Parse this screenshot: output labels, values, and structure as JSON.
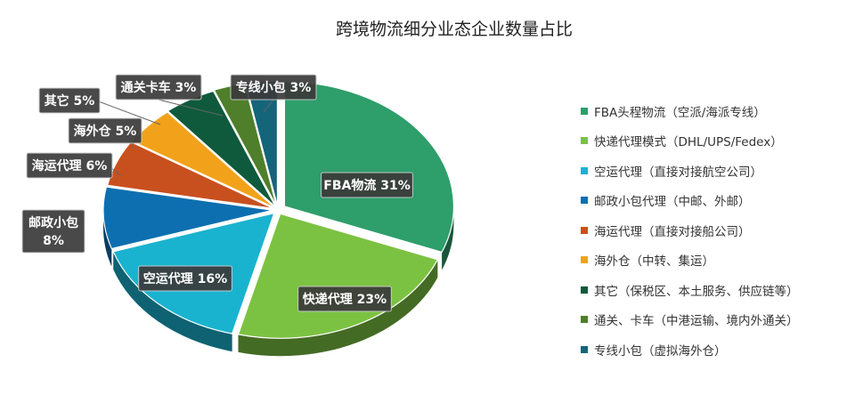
{
  "chart_data": {
    "type": "pie",
    "title": "跨境物流细分业态企业数量占比",
    "slices": [
      {
        "label": "FBA物流 31%",
        "value": 31,
        "color": "#2e9e6b",
        "legend": "FBA头程物流（空派/海派专线）"
      },
      {
        "label": "快递代理 23%",
        "value": 23,
        "color": "#7cc242",
        "legend": "快递代理模式（DHL/UPS/Fedex）"
      },
      {
        "label": "空运代理 16%",
        "value": 16,
        "color": "#1ab3cf",
        "legend": "空运代理（直接对接航空公司）"
      },
      {
        "label": "邮政小包\n8%",
        "value": 8,
        "color": "#0d6fb0",
        "legend": "邮政小包代理（中邮、外邮）"
      },
      {
        "label": "海运代理 6%",
        "value": 6,
        "color": "#c8501e",
        "legend": "海运代理（直接对接船公司）"
      },
      {
        "label": "海外仓 5%",
        "value": 5,
        "color": "#f2a21a",
        "legend": "海外仓（中转、集运）"
      },
      {
        "label": "其它 5%",
        "value": 5,
        "color": "#0f5a3c",
        "legend": "其它（保税区、本土服务、供应链等）"
      },
      {
        "label": "通关卡车 3%",
        "value": 3,
        "color": "#4f7f2a",
        "legend": "通关、卡车（中港运输、境内外通关）"
      },
      {
        "label": "专线小包 3%",
        "value": 3,
        "color": "#15657a",
        "legend": "专线小包（虚拟海外仓）"
      }
    ],
    "legend_position": "right",
    "style": "3d-pie-exploded"
  }
}
